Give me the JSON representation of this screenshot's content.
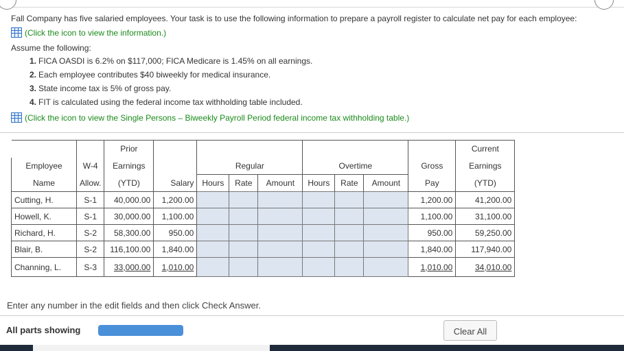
{
  "question": {
    "intro": "Fall Company has five salaried employees. Your task is to use the following information to prepare a payroll register to calculate net pay for each employee:",
    "info_link": "(Click the icon to view the information.)",
    "assume_label": "Assume the following:",
    "assumptions": [
      {
        "num": "1.",
        "text": "FICA OASDI is 6.2% on $117,000; FICA Medicare is 1.45% on all earnings."
      },
      {
        "num": "2.",
        "text": "Each employee contributes $40 biweekly for medical insurance."
      },
      {
        "num": "3.",
        "text": "State income tax is 5% of gross pay."
      },
      {
        "num": "4.",
        "text": "FIT is calculated using the federal income tax withholding table included."
      }
    ],
    "table_link": "(Click the icon to view the Single Persons – Biweekly Payroll Period federal income tax withholding table.)"
  },
  "table": {
    "headers": {
      "employee": "Employee",
      "name": "Name",
      "w4": "W-4",
      "allow": "Allow.",
      "prior": "Prior",
      "earnings": "Earnings",
      "ytd": "(YTD)",
      "salary": "Salary",
      "regular": "Regular",
      "overtime": "Overtime",
      "hours": "Hours",
      "rate": "Rate",
      "amount": "Amount",
      "gross": "Gross",
      "pay": "Pay",
      "current": "Current",
      "cur_earnings": "Earnings",
      "cur_ytd": "(YTD)"
    },
    "rows": [
      {
        "name": "Cutting, H.",
        "w4": "S-1",
        "prior": "40,000.00",
        "salary": "1,200.00",
        "gross": "1,200.00",
        "current": "41,200.00"
      },
      {
        "name": "Howell, K.",
        "w4": "S-1",
        "prior": "30,000.00",
        "salary": "1,100.00",
        "gross": "1,100.00",
        "current": "31,100.00"
      },
      {
        "name": "Richard, H.",
        "w4": "S-2",
        "prior": "58,300.00",
        "salary": "950.00",
        "gross": "950.00",
        "current": "59,250.00"
      },
      {
        "name": "Blair, B.",
        "w4": "S-2",
        "prior": "116,100.00",
        "salary": "1,840.00",
        "gross": "1,840.00",
        "current": "117,940.00"
      },
      {
        "name": "Channing, L.",
        "w4": "S-3",
        "prior": "33,000.00",
        "salary": "1,010.00",
        "gross": "1,010.00",
        "current": "34,010.00"
      }
    ]
  },
  "instructions": "Enter any number in the edit fields and then click Check Answer.",
  "footer": {
    "all_parts": "All parts showing",
    "clear_all": "Clear All"
  },
  "colors": {
    "link": "#1a8a1a",
    "edit_field": "#dde5f0",
    "progress": "#4a90d9"
  }
}
